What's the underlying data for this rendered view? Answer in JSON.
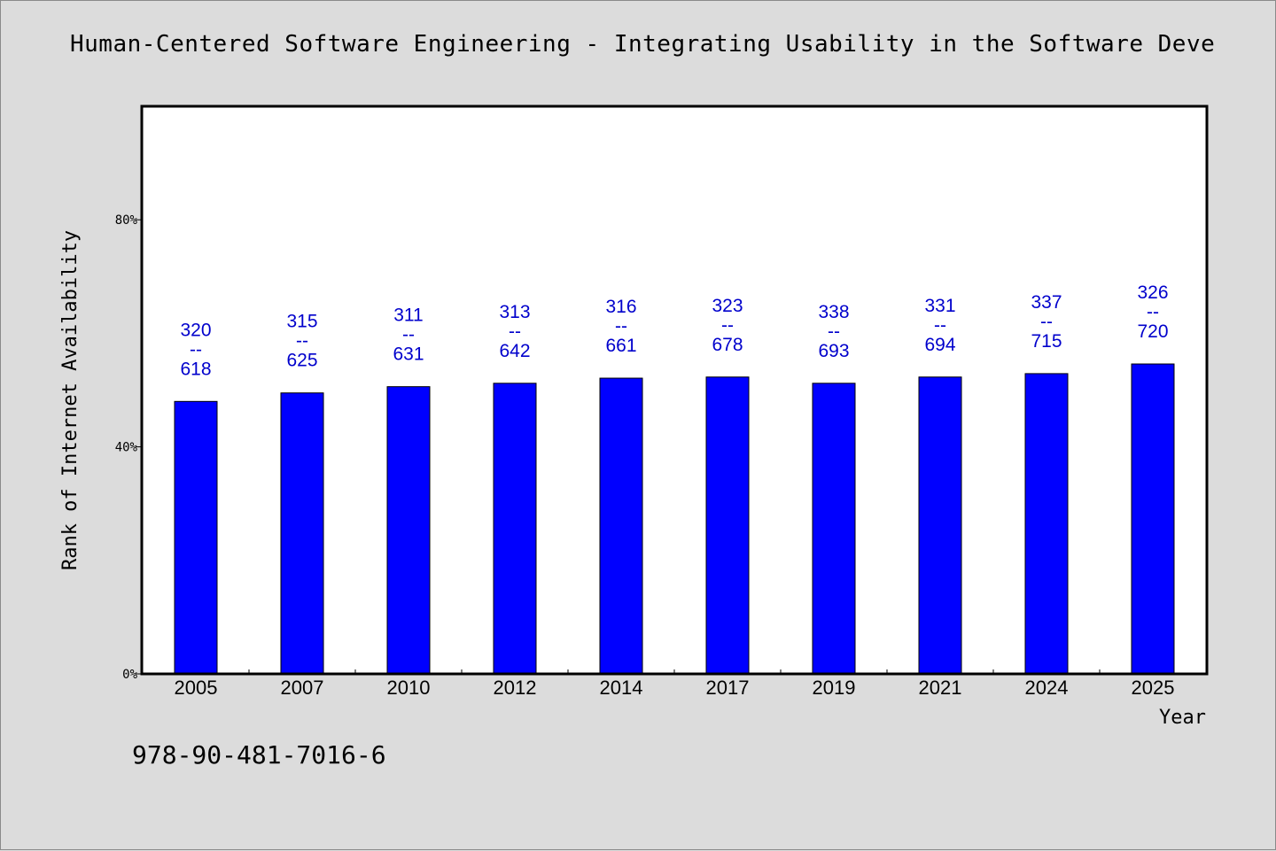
{
  "chart_data": {
    "type": "bar",
    "title": "Human-Centered Software Engineering - Integrating Usability in the Software Deve",
    "xlabel": "Year",
    "ylabel": "Rank of Internet Availability",
    "categories": [
      "2005",
      "2007",
      "2010",
      "2012",
      "2014",
      "2017",
      "2019",
      "2021",
      "2024",
      "2025"
    ],
    "values": [
      48.0,
      49.5,
      50.6,
      51.2,
      52.1,
      52.3,
      51.2,
      52.3,
      52.9,
      54.6
    ],
    "value_unit": "%",
    "ylim": [
      0,
      100
    ],
    "yticks": [
      0,
      40,
      80
    ],
    "ytick_labels": [
      "0%",
      "40%",
      "80%"
    ],
    "data_labels": [
      {
        "top": "320",
        "sep": "--",
        "bottom": "618"
      },
      {
        "top": "315",
        "sep": "--",
        "bottom": "625"
      },
      {
        "top": "311",
        "sep": "--",
        "bottom": "631"
      },
      {
        "top": "313",
        "sep": "--",
        "bottom": "642"
      },
      {
        "top": "316",
        "sep": "--",
        "bottom": "661"
      },
      {
        "top": "323",
        "sep": "--",
        "bottom": "678"
      },
      {
        "top": "338",
        "sep": "--",
        "bottom": "693"
      },
      {
        "top": "331",
        "sep": "--",
        "bottom": "694"
      },
      {
        "top": "337",
        "sep": "--",
        "bottom": "715"
      },
      {
        "top": "326",
        "sep": "--",
        "bottom": "720"
      }
    ],
    "bar_color": "#0000ff",
    "label_color": "#0000cc",
    "grid": false,
    "legend": "none"
  },
  "footer": {
    "isbn": "978-90-481-7016-6"
  }
}
